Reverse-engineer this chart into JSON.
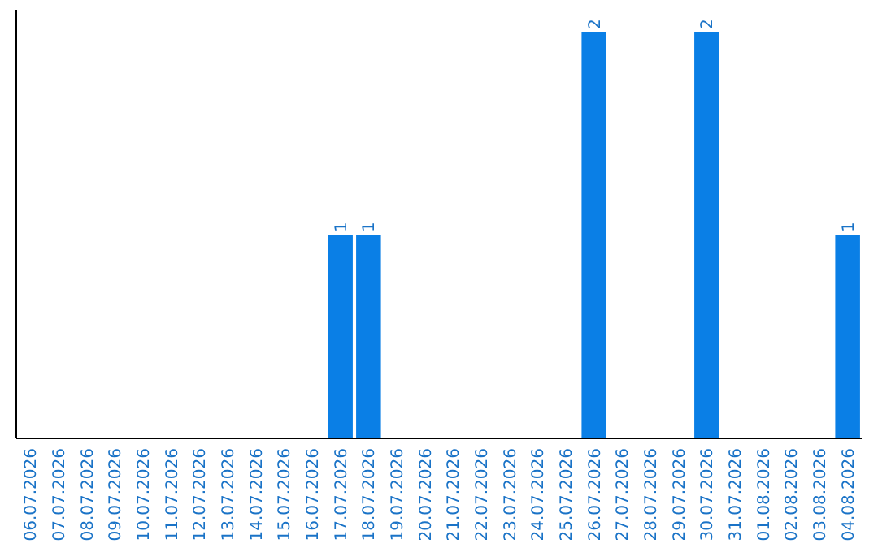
{
  "chart_data": {
    "type": "bar",
    "categories": [
      "06.07.2026",
      "07.07.2026",
      "08.07.2026",
      "09.07.2026",
      "10.07.2026",
      "11.07.2026",
      "12.07.2026",
      "13.07.2026",
      "14.07.2026",
      "15.07.2026",
      "16.07.2026",
      "17.07.2026",
      "18.07.2026",
      "19.07.2026",
      "20.07.2026",
      "21.07.2026",
      "22.07.2026",
      "23.07.2026",
      "24.07.2026",
      "25.07.2026",
      "26.07.2026",
      "27.07.2026",
      "28.07.2026",
      "29.07.2026",
      "30.07.2026",
      "31.07.2026",
      "01.08.2026",
      "02.08.2026",
      "03.08.2026",
      "04.08.2026"
    ],
    "values": [
      0,
      0,
      0,
      0,
      0,
      0,
      0,
      0,
      0,
      0,
      0,
      1,
      1,
      0,
      0,
      0,
      0,
      0,
      0,
      0,
      2,
      0,
      0,
      0,
      2,
      0,
      0,
      0,
      0,
      1
    ],
    "value_labels": [
      null,
      null,
      null,
      null,
      null,
      null,
      null,
      null,
      null,
      null,
      null,
      "1",
      "1",
      null,
      null,
      null,
      null,
      null,
      null,
      null,
      "2",
      null,
      null,
      null,
      "2",
      null,
      null,
      null,
      null,
      "1"
    ],
    "color": "#0a7fe6"
  }
}
